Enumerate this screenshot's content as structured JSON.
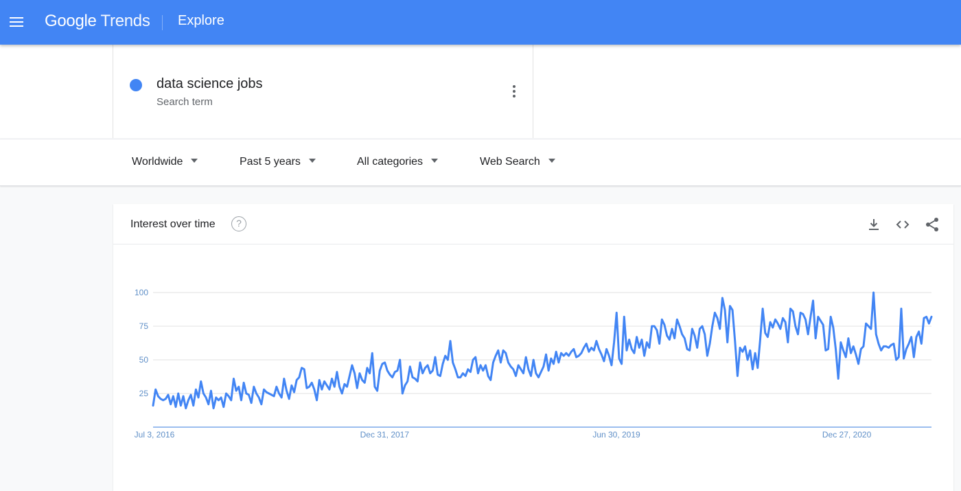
{
  "header": {
    "brand_google": "Google",
    "brand_trends": "Trends",
    "page_title": "Explore"
  },
  "term": {
    "name": "data science jobs",
    "type": "Search term",
    "color": "#4285f4"
  },
  "filters": {
    "region": "Worldwide",
    "time": "Past 5 years",
    "category": "All categories",
    "search_type": "Web Search"
  },
  "card": {
    "title": "Interest over time",
    "help_glyph": "?"
  },
  "chart_data": {
    "type": "line",
    "title": "Interest over time",
    "series_name": "data science jobs",
    "color": "#4285f4",
    "ylim": [
      0,
      100
    ],
    "yticks": [
      25,
      50,
      75,
      100
    ],
    "x_labels": [
      "Jul 3, 2016",
      "Dec 31, 2017",
      "Jun 30, 2019",
      "Dec 27, 2020"
    ],
    "x_range": [
      "Jul 3, 2016",
      "Jun 20, 2021"
    ],
    "grid": true,
    "legend": "none",
    "values": [
      16,
      28,
      23,
      21,
      20,
      21,
      24,
      17,
      23,
      15,
      25,
      16,
      23,
      14,
      20,
      24,
      16,
      28,
      22,
      34,
      25,
      22,
      17,
      27,
      14,
      22,
      20,
      22,
      15,
      25,
      23,
      20,
      36,
      27,
      30,
      20,
      33,
      25,
      24,
      18,
      30,
      25,
      22,
      17,
      28,
      26,
      25,
      24,
      23,
      30,
      25,
      22,
      36,
      27,
      21,
      31,
      26,
      35,
      37,
      44,
      43,
      29,
      30,
      33,
      28,
      20,
      35,
      28,
      34,
      31,
      28,
      36,
      30,
      41,
      30,
      25,
      32,
      30,
      38,
      46,
      40,
      29,
      40,
      35,
      33,
      44,
      40,
      55,
      30,
      27,
      42,
      47,
      48,
      42,
      39,
      37,
      41,
      42,
      50,
      25,
      31,
      34,
      45,
      37,
      36,
      34,
      48,
      40,
      44,
      46,
      40,
      42,
      52,
      39,
      38,
      47,
      53,
      50,
      64,
      48,
      43,
      37,
      37,
      40,
      38,
      43,
      41,
      50,
      52,
      40,
      46,
      42,
      46,
      38,
      35,
      48,
      53,
      57,
      48,
      57,
      55,
      48,
      45,
      43,
      38,
      46,
      43,
      40,
      52,
      43,
      38,
      50,
      40,
      37,
      41,
      45,
      54,
      42,
      51,
      47,
      56,
      48,
      55,
      53,
      55,
      53,
      56,
      58,
      52,
      53,
      55,
      59,
      62,
      56,
      59,
      57,
      64,
      58,
      54,
      49,
      58,
      53,
      46,
      63,
      85,
      51,
      47,
      82,
      57,
      65,
      58,
      55,
      67,
      59,
      65,
      53,
      63,
      59,
      75,
      75,
      72,
      62,
      80,
      76,
      68,
      65,
      73,
      66,
      80,
      75,
      69,
      66,
      58,
      57,
      73,
      68,
      59,
      73,
      75,
      69,
      53,
      62,
      75,
      85,
      81,
      73,
      96,
      87,
      63,
      90,
      87,
      64,
      38,
      59,
      56,
      60,
      50,
      57,
      43,
      55,
      44,
      65,
      88,
      70,
      67,
      78,
      74,
      80,
      77,
      73,
      81,
      78,
      63,
      88,
      86,
      75,
      69,
      85,
      84,
      80,
      69,
      82,
      94,
      66,
      82,
      79,
      76,
      57,
      58,
      82,
      74,
      58,
      36,
      63,
      57,
      52,
      66,
      55,
      60,
      54,
      47,
      58,
      60,
      77,
      75,
      73,
      100,
      69,
      62,
      57,
      60,
      60,
      59,
      61,
      62,
      50,
      52,
      88,
      51,
      58,
      62,
      67,
      52,
      67,
      71,
      62,
      81,
      82,
      77,
      82
    ]
  }
}
